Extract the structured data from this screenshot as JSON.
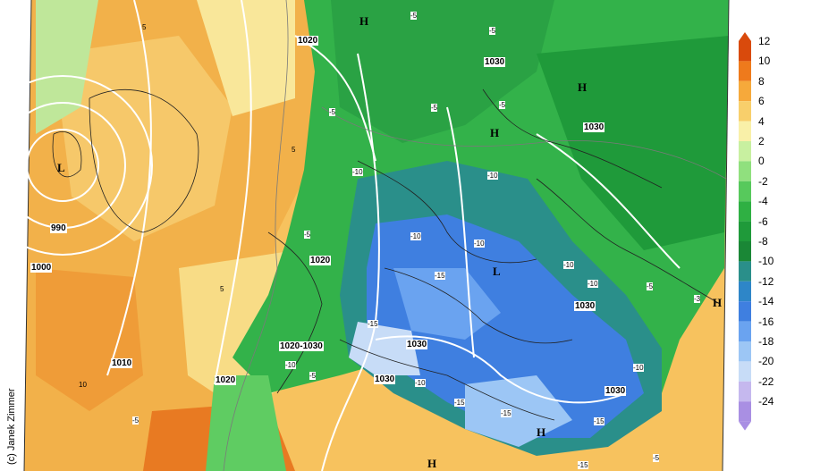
{
  "credit": "(c) Janek Zimmer",
  "legend": {
    "labels": [
      "12",
      "10",
      "8",
      "6",
      "4",
      "2",
      "0",
      "-2",
      "-4",
      "-6",
      "-8",
      "-10",
      "-12",
      "-14",
      "-16",
      "-18",
      "-20",
      "-22",
      "-24"
    ],
    "colors": [
      "#d94a0c",
      "#ee7a1c",
      "#f6a93b",
      "#f8cf6b",
      "#f9f0a8",
      "#c8f0a0",
      "#90e07e",
      "#57c95c",
      "#2fb043",
      "#1f9a3a",
      "#1a8736",
      "#2a8f8a",
      "#2e86c8",
      "#3f7fe0",
      "#6aa3f0",
      "#9cc6f5",
      "#c7dcf7",
      "#c5b8ee",
      "#a98fe3"
    ]
  },
  "isobars": [
    "1020",
    "1030",
    "990",
    "1000",
    "1010",
    "1020",
    "1020",
    "1020-1030",
    "1030",
    "1030",
    "1030",
    "1030",
    "1030"
  ],
  "pressure_centers": [
    {
      "label": "H",
      "kind": "high"
    },
    {
      "label": "H",
      "kind": "high"
    },
    {
      "label": "H",
      "kind": "high"
    },
    {
      "label": "L",
      "kind": "low"
    },
    {
      "label": "L",
      "kind": "low"
    },
    {
      "label": "H",
      "kind": "high"
    },
    {
      "label": "H",
      "kind": "high"
    },
    {
      "label": "H",
      "kind": "high"
    }
  ],
  "isotherm_labels": [
    "-5",
    "-5",
    "-5",
    "-5",
    "-5",
    "5",
    "-10",
    "-10",
    "-10",
    "-10",
    "-15",
    "-15",
    "-10",
    "-10",
    "-10",
    "-5",
    "-15",
    "-15",
    "-15",
    "-15",
    "-10",
    "-10",
    "-5",
    "-5",
    "-3",
    "5",
    "10",
    "5",
    "-5",
    "-5"
  ]
}
